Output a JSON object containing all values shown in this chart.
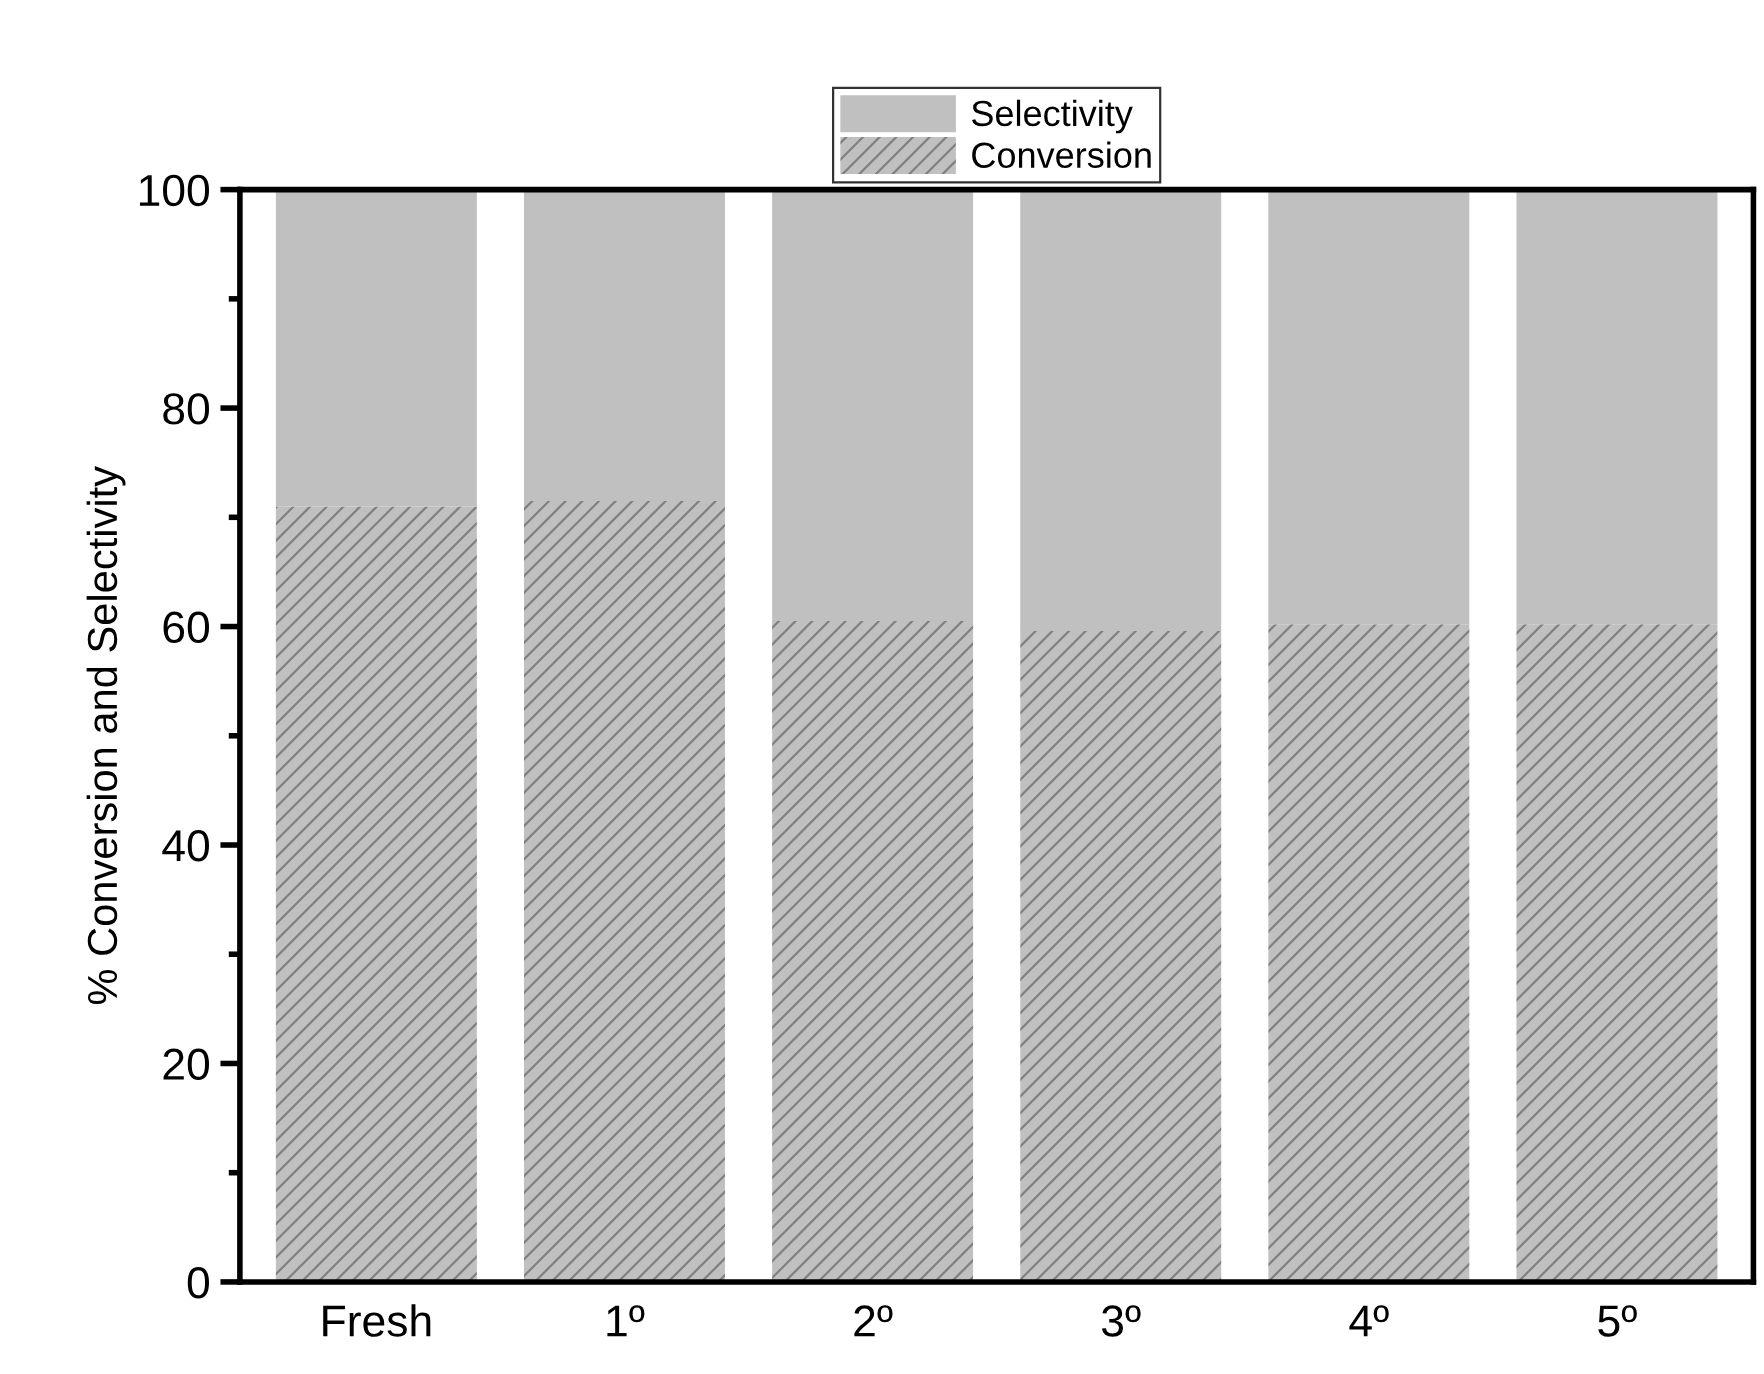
{
  "chart_data": {
    "type": "bar",
    "stacked": true,
    "ylabel": "% Conversion and Selectivity",
    "categories": [
      "Fresh",
      "1º",
      "2º",
      "3º",
      "4º",
      "5º"
    ],
    "series": [
      {
        "name": "Conversion",
        "color": "#c0c0c0",
        "values": [
          71.0,
          71.5,
          60.5,
          59.6,
          60.2,
          60.2
        ]
      },
      {
        "name": "Selectivity",
        "color": "#c0c0c0",
        "values": [
          29.0,
          28.5,
          39.5,
          40.4,
          39.8,
          39.8
        ]
      }
    ],
    "ylim": [
      0,
      100
    ],
    "yticks": [
      0,
      20,
      40,
      60,
      80,
      100
    ],
    "grid": false,
    "legend": "top"
  }
}
